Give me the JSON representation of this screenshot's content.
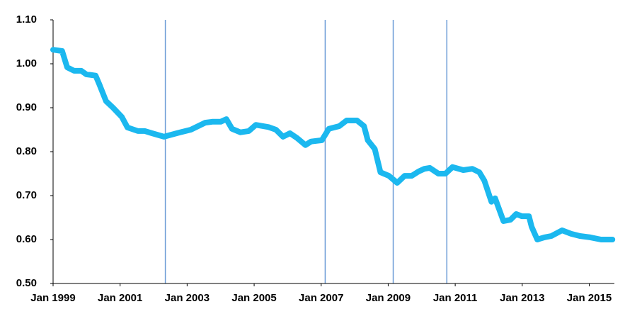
{
  "chart_data": {
    "type": "line",
    "x": [
      1999.0,
      1999.27,
      1999.42,
      1999.63,
      1999.84,
      1999.99,
      2000.27,
      2000.37,
      2000.58,
      2000.79,
      2001.05,
      2001.22,
      2001.53,
      2001.74,
      2001.95,
      2002.31,
      2002.69,
      2003.11,
      2003.54,
      2003.75,
      2004.0,
      2004.17,
      2004.34,
      2004.59,
      2004.84,
      2005.05,
      2005.43,
      2005.65,
      2005.86,
      2006.07,
      2006.28,
      2006.53,
      2006.7,
      2007.02,
      2007.23,
      2007.54,
      2007.76,
      2008.07,
      2008.28,
      2008.39,
      2008.6,
      2008.77,
      2009.02,
      2009.27,
      2009.49,
      2009.7,
      2009.91,
      2010.08,
      2010.24,
      2010.5,
      2010.71,
      2010.92,
      2011.24,
      2011.51,
      2011.72,
      2011.87,
      2012.08,
      2012.19,
      2012.44,
      2012.65,
      2012.82,
      2012.99,
      2013.2,
      2013.28,
      2013.45,
      2013.66,
      2013.87,
      2014.19,
      2014.46,
      2014.72,
      2015.03,
      2015.35,
      2015.69
    ],
    "values": [
      1.032,
      1.029,
      0.992,
      0.984,
      0.984,
      0.976,
      0.973,
      0.955,
      0.915,
      0.9,
      0.879,
      0.855,
      0.847,
      0.847,
      0.842,
      0.834,
      0.842,
      0.85,
      0.866,
      0.868,
      0.868,
      0.874,
      0.852,
      0.844,
      0.847,
      0.861,
      0.856,
      0.85,
      0.834,
      0.842,
      0.831,
      0.815,
      0.823,
      0.826,
      0.852,
      0.858,
      0.871,
      0.871,
      0.858,
      0.826,
      0.806,
      0.753,
      0.745,
      0.729,
      0.745,
      0.745,
      0.755,
      0.761,
      0.763,
      0.75,
      0.75,
      0.765,
      0.758,
      0.761,
      0.753,
      0.734,
      0.686,
      0.694,
      0.642,
      0.645,
      0.658,
      0.653,
      0.653,
      0.629,
      0.6,
      0.605,
      0.608,
      0.621,
      0.613,
      0.608,
      0.605,
      0.6,
      0.6
    ],
    "color": "#1bb8ef",
    "event_lines": [
      2002.35,
      2007.12,
      2009.15,
      2010.75
    ],
    "event_line_color": "#6b9bd6",
    "xlim": [
      1999,
      2015.75
    ],
    "xticks": [
      {
        "value": 1999,
        "label": "Jan 1999"
      },
      {
        "value": 2001,
        "label": "Jan 2001"
      },
      {
        "value": 2003,
        "label": "Jan 2003"
      },
      {
        "value": 2005,
        "label": "Jan 2005"
      },
      {
        "value": 2007,
        "label": "Jan 2007"
      },
      {
        "value": 2009,
        "label": "Jan 2009"
      },
      {
        "value": 2011,
        "label": "Jan 2011"
      },
      {
        "value": 2013,
        "label": "Jan 2013"
      },
      {
        "value": 2015,
        "label": "Jan 2015"
      }
    ],
    "ylim": [
      0.5,
      1.1
    ],
    "yticks": [
      {
        "value": 0.5,
        "label": "0.50"
      },
      {
        "value": 0.6,
        "label": "0.60"
      },
      {
        "value": 0.7,
        "label": "0.70"
      },
      {
        "value": 0.8,
        "label": "0.80"
      },
      {
        "value": 0.9,
        "label": "0.90"
      },
      {
        "value": 1.0,
        "label": "1.00"
      },
      {
        "value": 1.1,
        "label": "1.10"
      }
    ],
    "grid": false
  }
}
